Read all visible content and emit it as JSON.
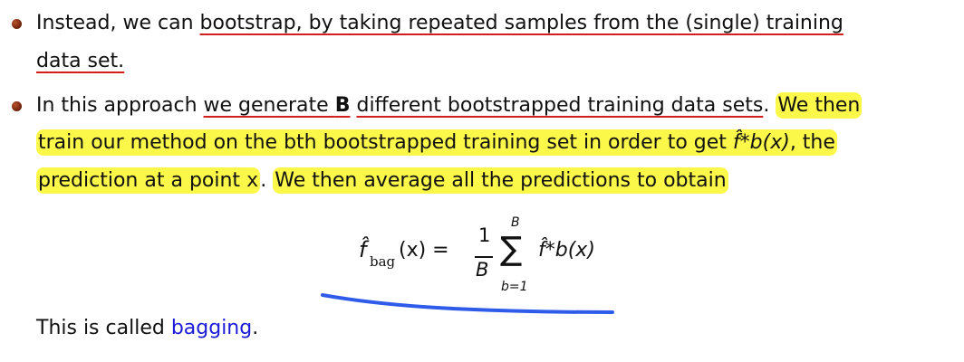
{
  "bullet1": {
    "line1_a": "Instead, we can ",
    "line1_b": "bootstrap, by taking repeated samples from the (single) training",
    "line2": "data set."
  },
  "bullet2": {
    "line1_a": "In this approach ",
    "line1_b": "we generate ",
    "line1_c": "B",
    "line1_d": "different bootstrapped training data sets",
    "line1_e": ". ",
    "line1_f": "We then",
    "line2_a": "train our method on the bth bootstrapped training set in order to get ",
    "line2_math": "f̂*b(x)",
    "line2_b": ", the",
    "line3_a": "prediction at a point ",
    "line3_x": "x",
    "line3_b": ". ",
    "line3_c": "We then average all the predictions to obtain"
  },
  "formula": {
    "lhs_f": "f̂",
    "lhs_sub": "bag",
    "lhs_arg": "(x) =",
    "frac_num": "1",
    "frac_den": "B",
    "sum_symbol": "∑",
    "sum_upper": "B",
    "sum_lower": "b=1",
    "rhs": "f̂*b(x)"
  },
  "closing": {
    "text": "This is called ",
    "link": "bagging",
    "end": "."
  },
  "colors": {
    "highlight": "#fbf84a",
    "underline": "#d41d1d",
    "link": "#1a1ad8",
    "ink": "#2f5bea"
  }
}
